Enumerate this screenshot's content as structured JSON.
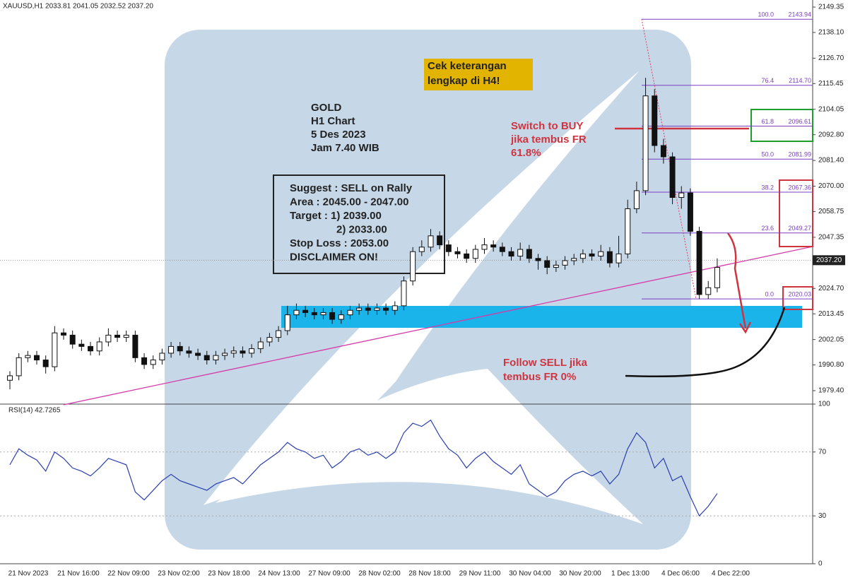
{
  "chart_data": {
    "type": "candlestick",
    "header": "XAUUSD,H1  2033.81 2041.05 2032.52 2037.20",
    "candles": [
      [
        1984,
        1988,
        1980,
        1986
      ],
      [
        1986,
        1996,
        1984,
        1994
      ],
      [
        1994,
        1997,
        1992,
        1995
      ],
      [
        1995,
        1997,
        1991,
        1993
      ],
      [
        1993,
        1995,
        1987,
        1990
      ],
      [
        1990,
        2008,
        1988,
        2005
      ],
      [
        2005,
        2007,
        2002,
        2004
      ],
      [
        2004,
        2006,
        1998,
        2000
      ],
      [
        2000,
        2002,
        1997,
        1999
      ],
      [
        1999,
        2001,
        1995,
        1997
      ],
      [
        1997,
        2003,
        1995,
        2001
      ],
      [
        2001,
        2007,
        1999,
        2004
      ],
      [
        2004,
        2006,
        2001,
        2003
      ],
      [
        2003,
        2006,
        2001,
        2004
      ],
      [
        2004,
        2006,
        1992,
        1994
      ],
      [
        1994,
        1996,
        1989,
        1991
      ],
      [
        1991,
        1995,
        1989,
        1993
      ],
      [
        1993,
        1998,
        1991,
        1996
      ],
      [
        1996,
        2001,
        1994,
        1999
      ],
      [
        1999,
        2001,
        1995,
        1997
      ],
      [
        1997,
        1999,
        1994,
        1996
      ],
      [
        1996,
        1998,
        1993,
        1995
      ],
      [
        1995,
        1997,
        1991,
        1993
      ],
      [
        1993,
        1997,
        1991,
        1995
      ],
      [
        1995,
        1998,
        1993,
        1996
      ],
      [
        1996,
        1999,
        1994,
        1997
      ],
      [
        1997,
        1999,
        1994,
        1996
      ],
      [
        1996,
        2000,
        1994,
        1998
      ],
      [
        1998,
        2003,
        1996,
        2001
      ],
      [
        2001,
        2005,
        1999,
        2003
      ],
      [
        2003,
        2008,
        2001,
        2006
      ],
      [
        2006,
        2017,
        2004,
        2013
      ],
      [
        2013,
        2018,
        2011,
        2015
      ],
      [
        2015,
        2017,
        2012,
        2014
      ],
      [
        2014,
        2016,
        2011,
        2013
      ],
      [
        2013,
        2016,
        2011,
        2014
      ],
      [
        2014,
        2016,
        2009,
        2011
      ],
      [
        2011,
        2015,
        2009,
        2013
      ],
      [
        2013,
        2017,
        2011,
        2015
      ],
      [
        2015,
        2018,
        2013,
        2016
      ],
      [
        2016,
        2018,
        2013,
        2015
      ],
      [
        2015,
        2018,
        2013,
        2016
      ],
      [
        2016,
        2018,
        2013,
        2015
      ],
      [
        2015,
        2019,
        2013,
        2017
      ],
      [
        2017,
        2030,
        2015,
        2028
      ],
      [
        2028,
        2043,
        2026,
        2041
      ],
      [
        2041,
        2046,
        2039,
        2043
      ],
      [
        2043,
        2051,
        2041,
        2048
      ],
      [
        2048,
        2050,
        2042,
        2044
      ],
      [
        2044,
        2046,
        2039,
        2041
      ],
      [
        2041,
        2043,
        2038,
        2040
      ],
      [
        2040,
        2042,
        2036,
        2038
      ],
      [
        2038,
        2044,
        2036,
        2042
      ],
      [
        2042,
        2047,
        2040,
        2044
      ],
      [
        2044,
        2046,
        2041,
        2043
      ],
      [
        2043,
        2045,
        2039,
        2041
      ],
      [
        2041,
        2043,
        2037,
        2039
      ],
      [
        2039,
        2045,
        2037,
        2042
      ],
      [
        2042,
        2044,
        2036,
        2038
      ],
      [
        2038,
        2040,
        2033,
        2037
      ],
      [
        2037,
        2039,
        2031,
        2034
      ],
      [
        2034,
        2037,
        2032,
        2035
      ],
      [
        2035,
        2039,
        2033,
        2037
      ],
      [
        2037,
        2040,
        2035,
        2038
      ],
      [
        2038,
        2042,
        2036,
        2040
      ],
      [
        2040,
        2042,
        2037,
        2039
      ],
      [
        2039,
        2044,
        2037,
        2041
      ],
      [
        2041,
        2043,
        2034,
        2036
      ],
      [
        2036,
        2048,
        2034,
        2040
      ],
      [
        2040,
        2064,
        2038,
        2060
      ],
      [
        2060,
        2072,
        2058,
        2068
      ],
      [
        2068,
        2118,
        2066,
        2110
      ],
      [
        2110,
        2113,
        2085,
        2088
      ],
      [
        2088,
        2091,
        2080,
        2083
      ],
      [
        2083,
        2085,
        2062,
        2065
      ],
      [
        2065,
        2070,
        2060,
        2067
      ],
      [
        2067,
        2069,
        2048,
        2050
      ],
      [
        2050,
        2052,
        2020,
        2022
      ],
      [
        2022,
        2028,
        2020,
        2025
      ],
      [
        2025,
        2038,
        2023,
        2034
      ]
    ],
    "ylim": [
      1973.45,
      2152.48
    ],
    "yticks": [
      2149.35,
      {
        "value": 2138.1,
        "label": "2138.10"
      },
      {
        "value": 2126.7,
        "label": "2126.70"
      },
      2115.45,
      2104.05,
      {
        "value": 2092.8,
        "label": "2092.80"
      },
      {
        "value": 2081.4,
        "label": "2081.40"
      },
      {
        "value": 2070,
        "label": "2070.00"
      },
      2058.75,
      2047.35,
      {
        "value": 2024.7,
        "label": "2024.70"
      },
      2013.45,
      2002.05,
      {
        "value": 1990.8,
        "label": "1990.80"
      },
      {
        "value": 1979.4,
        "label": "1979.40"
      }
    ],
    "last_price": {
      "value": 2037.2,
      "label": "2037.20"
    },
    "x_labels": [
      "21 Nov 2023",
      "21 Nov 16:00",
      "22 Nov 09:00",
      "23 Nov 02:00",
      "23 Nov 18:00",
      "24 Nov 13:00",
      "27 Nov 09:00",
      "28 Nov 02:00",
      "28 Nov 18:00",
      "29 Nov 11:00",
      "30 Nov 04:00",
      "30 Nov 20:00",
      "1 Dec 13:00",
      "4 Dec 06:00",
      "4 Dec 22:00"
    ],
    "fib": {
      "ratios": [
        "100.0",
        "76.4",
        "61.8",
        "50.0",
        "38.2",
        "23.6",
        "0.0"
      ],
      "values": [
        2143.94,
        2114.7,
        2096.61,
        2081.99,
        2067.36,
        2049.27,
        2020.03
      ],
      "value_labels": [
        "2143.94",
        "2114.70",
        "2096.61",
        "2081.99",
        "2067.36",
        "2049.27",
        "2020.03"
      ],
      "color": "#7b3fc4"
    },
    "rsi": {
      "label": "RSI(14) 42.7265",
      "color": "#2b3fb0",
      "ylim": [
        0,
        100
      ],
      "yticks": [
        100,
        70,
        30,
        0
      ],
      "values": [
        62,
        72,
        68,
        65,
        58,
        70,
        66,
        60,
        58,
        55,
        60,
        66,
        64,
        62,
        45,
        40,
        46,
        52,
        56,
        52,
        50,
        48,
        46,
        50,
        52,
        54,
        50,
        56,
        62,
        66,
        70,
        76,
        72,
        70,
        66,
        68,
        60,
        64,
        70,
        72,
        68,
        70,
        66,
        70,
        82,
        88,
        86,
        90,
        80,
        72,
        68,
        60,
        66,
        70,
        64,
        60,
        56,
        62,
        50,
        46,
        42,
        45,
        52,
        56,
        58,
        55,
        58,
        50,
        56,
        72,
        82,
        76,
        60,
        66,
        52,
        55,
        42,
        30,
        36,
        44
      ]
    },
    "annotations": {
      "gold": [
        "GOLD",
        "H1 Chart",
        "5 Des 2023",
        "Jam 7.40 WIB"
      ],
      "suggest": [
        "Suggest : SELL on Rally",
        "Area : 2045.00 - 2047.00",
        "Target : 1) 2039.00",
        "2) 2033.00",
        "Stop Loss : 2053.00",
        "DISCLAIMER ON!"
      ],
      "check": [
        "Cek keterangan",
        "lengkap di H4!"
      ],
      "buy": [
        "Switch to BUY",
        "jika tembus FR",
        "61.8%"
      ],
      "sell": [
        "Follow SELL jika",
        "tembus FR 0%"
      ]
    }
  }
}
